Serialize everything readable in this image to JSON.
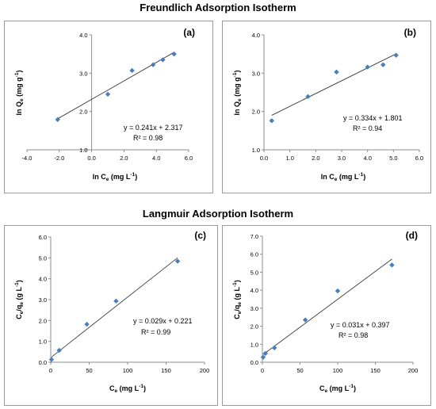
{
  "titles": {
    "freundlich": "Freundlich Adsorption Isotherm",
    "langmuir": "Langmuir Adsorption Isotherm"
  },
  "colors": {
    "marker": "#4a7ebb",
    "fit_line": "#3c3c3c",
    "axis": "#8c8c8c"
  },
  "chart_data": [
    {
      "type": "scatter",
      "panel_label": "(a)",
      "x": [
        -2.1,
        1.0,
        2.5,
        3.8,
        4.4,
        5.1
      ],
      "y": [
        1.79,
        2.45,
        3.07,
        3.22,
        3.35,
        3.5
      ],
      "fit": {
        "slope": 0.241,
        "intercept": 2.317
      },
      "equation": "y = 0.241x + 2.317",
      "r2": "R² = 0.98",
      "xlabel": "ln C",
      "xlabel_sub": "e",
      "xlabel_unit": " (mg L",
      "xlabel_unit_sup": "-1",
      "xlabel_close": ")",
      "ylabel": "ln Q",
      "ylabel_sub": "e",
      "ylabel_unit": " (mg g",
      "ylabel_unit_sup": "-1",
      "ylabel_close": ")",
      "xlim": [
        -4,
        6
      ],
      "ylim": [
        1,
        4
      ],
      "xticks": [
        -4,
        -2,
        0,
        2,
        4,
        6
      ],
      "xtick_labels": [
        "-4.0",
        "-2.0",
        "0.0",
        "2.0",
        "4.0",
        "6.0"
      ],
      "yticks": [
        1,
        2,
        3,
        4
      ],
      "ytick_labels": [
        "1.0",
        "2.0",
        "3.0",
        "4.0"
      ]
    },
    {
      "type": "scatter",
      "panel_label": "(b)",
      "x": [
        0.3,
        1.7,
        2.8,
        4.0,
        4.6,
        5.1
      ],
      "y": [
        1.76,
        2.39,
        3.03,
        3.16,
        3.22,
        3.47
      ],
      "fit": {
        "slope": 0.334,
        "intercept": 1.801
      },
      "equation": "y = 0.334x + 1.801",
      "r2": "R² = 0.94",
      "xlabel": "ln C",
      "xlabel_sub": "e",
      "xlabel_unit": " (mg L",
      "xlabel_unit_sup": "-1",
      "xlabel_close": ")",
      "ylabel": "ln Q",
      "ylabel_sub": "e",
      "ylabel_unit": " (mg g",
      "ylabel_unit_sup": "-1",
      "ylabel_close": ")",
      "xlim": [
        0,
        6
      ],
      "ylim": [
        1,
        4
      ],
      "xticks": [
        0,
        1,
        2,
        3,
        4,
        5,
        6
      ],
      "xtick_labels": [
        "0.0",
        "1.0",
        "2.0",
        "3.0",
        "4.0",
        "5.0",
        "6.0"
      ],
      "yticks": [
        1,
        2,
        3,
        4
      ],
      "ytick_labels": [
        "1.0",
        "2.0",
        "3.0",
        "4.0"
      ]
    },
    {
      "type": "scatter",
      "panel_label": "(c)",
      "x": [
        1,
        11,
        47,
        85,
        165
      ],
      "y": [
        0.13,
        0.57,
        1.82,
        2.93,
        4.84
      ],
      "fit": {
        "slope": 0.029,
        "intercept": 0.221
      },
      "equation": "y = 0.029x + 0.221",
      "r2": "R² = 0.99",
      "xlabel": "C",
      "xlabel_sub": "e",
      "xlabel_unit": " (mg L",
      "xlabel_unit_sup": "-1",
      "xlabel_close": ")",
      "ylabel": "C",
      "ylabel_sub": "e",
      "ylabel_mid": "/q",
      "ylabel_sub2": "e",
      "ylabel_unit": " (g L",
      "ylabel_unit_sup": "-1",
      "ylabel_close": ")",
      "xlim": [
        0,
        200
      ],
      "ylim": [
        0,
        6
      ],
      "xticks": [
        0,
        50,
        100,
        150,
        200
      ],
      "xtick_labels": [
        "0",
        "50",
        "100",
        "150",
        "200"
      ],
      "yticks": [
        0,
        1,
        2,
        3,
        4,
        5,
        6
      ],
      "ytick_labels": [
        "0.0",
        "1.0",
        "2.0",
        "3.0",
        "4.0",
        "5.0",
        "6.0"
      ]
    },
    {
      "type": "scatter",
      "panel_label": "(d)",
      "x": [
        1,
        4,
        16,
        57,
        100,
        172
      ],
      "y": [
        0.28,
        0.49,
        0.8,
        2.35,
        3.96,
        5.4
      ],
      "fit": {
        "slope": 0.031,
        "intercept": 0.397
      },
      "equation": "y = 0.031x + 0.397",
      "r2": "R² = 0.98",
      "xlabel": "C",
      "xlabel_sub": "e",
      "xlabel_unit": " (mg L",
      "xlabel_unit_sup": "-1",
      "xlabel_close": ")",
      "ylabel": "C",
      "ylabel_sub": "e",
      "ylabel_mid": "/q",
      "ylabel_sub2": "e",
      "ylabel_unit": " (g L",
      "ylabel_unit_sup": "-1",
      "ylabel_close": ")",
      "xlim": [
        0,
        200
      ],
      "ylim": [
        0,
        7
      ],
      "xticks": [
        0,
        50,
        100,
        150,
        200
      ],
      "xtick_labels": [
        "0",
        "50",
        "100",
        "150",
        "200"
      ],
      "yticks": [
        0,
        1,
        2,
        3,
        4,
        5,
        6,
        7
      ],
      "ytick_labels": [
        "0.0",
        "1.0",
        "2.0",
        "3.0",
        "4.0",
        "5.0",
        "6.0",
        "7.0"
      ]
    }
  ]
}
